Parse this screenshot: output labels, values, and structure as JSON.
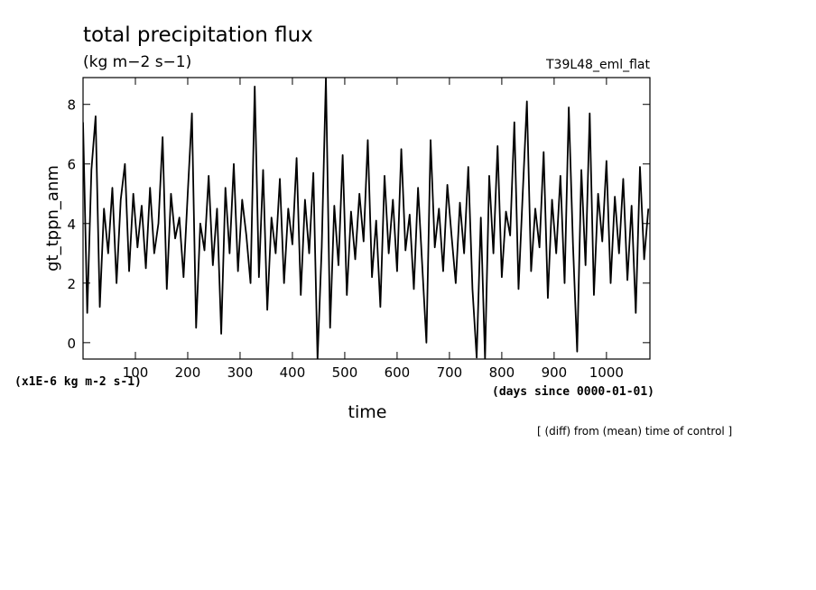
{
  "chart_data": {
    "type": "line",
    "title": "total precipitation flux",
    "subtitle": "(kg m−2 s−1)",
    "experiment": "T39L48_eml_flat",
    "ylabel": "gt_tppn_anm",
    "xlabel": "time",
    "y_unit_note": "(x1E-6 kg m-2 s-1)",
    "x_unit_note": "(days since 0000-01-01)",
    "footnote": "[ (diff) from (mean) time of control ]",
    "color": "#000000",
    "xlim": [
      0,
      1083
    ],
    "ylim": [
      -0.55,
      8.9
    ],
    "xticks": [
      100,
      200,
      300,
      400,
      500,
      600,
      700,
      800,
      900,
      1000
    ],
    "yticks": [
      0,
      2,
      4,
      6,
      8
    ],
    "x": [
      0,
      8,
      16,
      24,
      32,
      40,
      48,
      56,
      64,
      72,
      80,
      88,
      96,
      104,
      112,
      120,
      128,
      136,
      144,
      152,
      160,
      168,
      176,
      184,
      192,
      200,
      208,
      216,
      224,
      232,
      240,
      248,
      256,
      264,
      272,
      280,
      288,
      296,
      304,
      312,
      320,
      328,
      336,
      344,
      352,
      360,
      368,
      376,
      384,
      392,
      400,
      408,
      416,
      424,
      432,
      440,
      448,
      456,
      464,
      472,
      480,
      488,
      496,
      504,
      512,
      520,
      528,
      536,
      544,
      552,
      560,
      568,
      576,
      584,
      592,
      600,
      608,
      616,
      624,
      632,
      640,
      648,
      656,
      664,
      672,
      680,
      688,
      696,
      704,
      712,
      720,
      728,
      736,
      744,
      752,
      760,
      768,
      776,
      784,
      792,
      800,
      808,
      816,
      824,
      832,
      840,
      848,
      856,
      864,
      872,
      880,
      888,
      896,
      904,
      912,
      920,
      928,
      936,
      944,
      952,
      960,
      968,
      976,
      984,
      992,
      1000,
      1008,
      1016,
      1024,
      1032,
      1040,
      1048,
      1056,
      1064,
      1072,
      1080
    ],
    "values": [
      7.4,
      1.0,
      5.8,
      7.6,
      1.2,
      4.5,
      3.0,
      5.2,
      2.0,
      4.8,
      6.0,
      2.4,
      5.0,
      3.2,
      4.6,
      2.5,
      5.2,
      3.0,
      4.0,
      6.9,
      1.8,
      5.0,
      3.5,
      4.2,
      2.2,
      5.0,
      7.7,
      0.5,
      4.0,
      3.1,
      5.6,
      2.6,
      4.5,
      0.3,
      5.2,
      3.0,
      6.0,
      2.4,
      4.8,
      3.6,
      2.0,
      8.6,
      2.2,
      5.8,
      1.1,
      4.2,
      3.0,
      5.5,
      2.0,
      4.5,
      3.3,
      6.2,
      1.6,
      4.8,
      3.0,
      5.7,
      -0.55,
      3.2,
      8.9,
      0.5,
      4.6,
      2.6,
      6.3,
      1.6,
      4.4,
      2.8,
      5.0,
      3.4,
      6.8,
      2.2,
      4.1,
      1.2,
      5.6,
      3.0,
      4.8,
      2.4,
      6.5,
      3.1,
      4.3,
      1.8,
      5.2,
      2.6,
      0.0,
      6.8,
      3.2,
      4.5,
      2.4,
      5.3,
      3.6,
      2.0,
      4.7,
      3.0,
      5.9,
      1.8,
      -0.5,
      4.2,
      -0.55,
      5.6,
      3.0,
      6.6,
      2.2,
      4.4,
      3.6,
      7.4,
      1.8,
      5.0,
      8.1,
      2.4,
      4.5,
      3.2,
      6.4,
      1.5,
      4.8,
      3.0,
      5.6,
      2.0,
      7.9,
      3.3,
      -0.3,
      5.8,
      2.6,
      7.7,
      1.6,
      5.0,
      3.4,
      6.1,
      2.0,
      4.9,
      3.0,
      5.5,
      2.1,
      4.6,
      1.0,
      5.9,
      2.8,
      4.5
    ]
  }
}
